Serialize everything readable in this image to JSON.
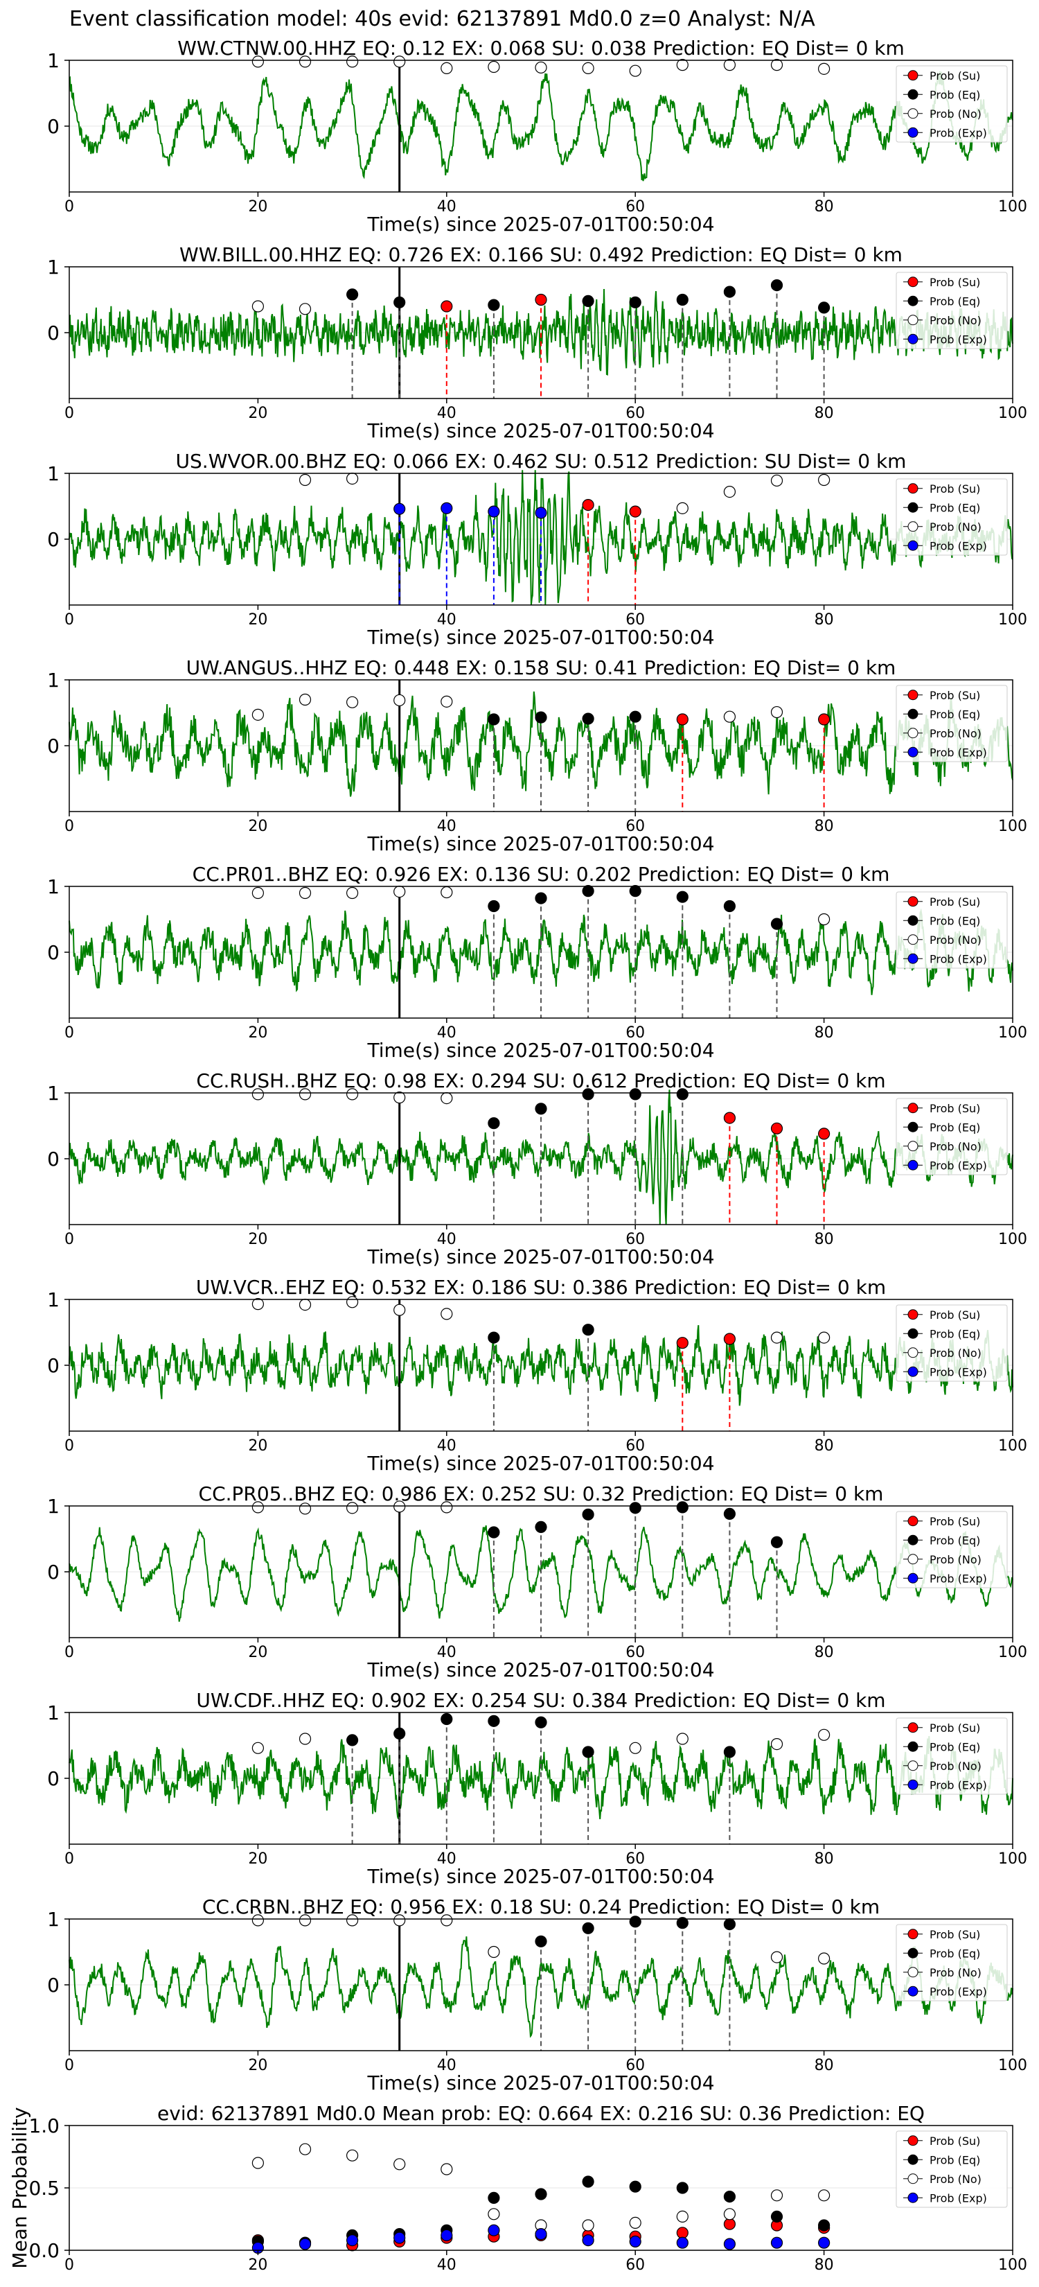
{
  "figure_title": "Event classification model: 40s evid: 62137891 Md0.0 z=0 Analyst: N/A",
  "legend_labels": [
    "Prob (Su)",
    "Prob (Eq)",
    "Prob (No)",
    "Prob (Exp)"
  ],
  "colors": {
    "waveform": "#008000",
    "su": "#ff0000",
    "eq": "#000000",
    "no": "#ffffff",
    "exp": "#0000ff",
    "pick": "#000000"
  },
  "chart_data": [
    {
      "type": "line",
      "title": "WW.CTNW.00.HHZ   EQ: 0.12  EX: 0.068  SU: 0.038   Prediction: EQ    Dist= 0 km",
      "xlabel": "Time(s) since 2025-07-01T00:50:04",
      "ylabel": "",
      "xlim": [
        0,
        100
      ],
      "ylim": [
        -1,
        1
      ],
      "xticks": [
        0,
        20,
        40,
        60,
        80,
        100
      ],
      "yticks": [
        0,
        1
      ],
      "pick_time": 35,
      "waveform": {
        "seed": 11,
        "amplitude": 0.65,
        "noise": 0.12,
        "period": 4.2
      },
      "points": [
        {
          "t": 20,
          "cls": "no",
          "p": 0.98
        },
        {
          "t": 25,
          "cls": "no",
          "p": 0.98
        },
        {
          "t": 30,
          "cls": "no",
          "p": 0.98
        },
        {
          "t": 35,
          "cls": "no",
          "p": 0.98
        },
        {
          "t": 40,
          "cls": "no",
          "p": 0.88
        },
        {
          "t": 45,
          "cls": "no",
          "p": 0.9
        },
        {
          "t": 50,
          "cls": "no",
          "p": 0.89
        },
        {
          "t": 55,
          "cls": "no",
          "p": 0.88
        },
        {
          "t": 60,
          "cls": "no",
          "p": 0.84
        },
        {
          "t": 65,
          "cls": "no",
          "p": 0.93
        },
        {
          "t": 70,
          "cls": "no",
          "p": 0.93
        },
        {
          "t": 75,
          "cls": "no",
          "p": 0.93
        },
        {
          "t": 80,
          "cls": "no",
          "p": 0.87
        }
      ]
    },
    {
      "type": "line",
      "title": "WW.BILL.00.HHZ   EQ: 0.726  EX: 0.166  SU: 0.492   Prediction: EQ    Dist= 0 km",
      "xlabel": "Time(s) since 2025-07-01T00:50:04",
      "ylabel": "",
      "xlim": [
        0,
        100
      ],
      "ylim": [
        -1,
        1
      ],
      "xticks": [
        0,
        20,
        40,
        60,
        80,
        100
      ],
      "yticks": [
        0,
        1
      ],
      "pick_time": 35,
      "waveform": {
        "seed": 23,
        "amplitude": 0.2,
        "noise": 0.25,
        "period": 0.9,
        "burst": [
          45,
          70,
          0.35
        ]
      },
      "points": [
        {
          "t": 20,
          "cls": "no",
          "p": 0.4
        },
        {
          "t": 25,
          "cls": "no",
          "p": 0.36
        },
        {
          "t": 30,
          "cls": "eq",
          "p": 0.58
        },
        {
          "t": 35,
          "cls": "eq",
          "p": 0.46
        },
        {
          "t": 40,
          "cls": "su",
          "p": 0.4
        },
        {
          "t": 45,
          "cls": "eq",
          "p": 0.42
        },
        {
          "t": 50,
          "cls": "su",
          "p": 0.5
        },
        {
          "t": 55,
          "cls": "eq",
          "p": 0.48
        },
        {
          "t": 60,
          "cls": "eq",
          "p": 0.46
        },
        {
          "t": 65,
          "cls": "eq",
          "p": 0.5
        },
        {
          "t": 70,
          "cls": "eq",
          "p": 0.62
        },
        {
          "t": 75,
          "cls": "eq",
          "p": 0.72
        },
        {
          "t": 80,
          "cls": "eq",
          "p": 0.38
        }
      ]
    },
    {
      "type": "line",
      "title": "US.WVOR.00.BHZ   EQ: 0.066  EX: 0.462  SU: 0.512   Prediction: SU    Dist= 0 km",
      "xlabel": "Time(s) since 2025-07-01T00:50:04",
      "ylabel": "",
      "xlim": [
        0,
        100
      ],
      "ylim": [
        -1,
        1
      ],
      "xticks": [
        0,
        20,
        40,
        60,
        80,
        100
      ],
      "yticks": [
        0,
        1
      ],
      "pick_time": 35,
      "waveform": {
        "seed": 37,
        "amplitude": 0.35,
        "noise": 0.2,
        "period": 1.6,
        "burst": [
          42,
          56,
          0.95
        ]
      },
      "points": [
        {
          "t": 25,
          "cls": "no",
          "p": 0.9
        },
        {
          "t": 30,
          "cls": "no",
          "p": 0.92
        },
        {
          "t": 35,
          "cls": "exp",
          "p": 0.46
        },
        {
          "t": 40,
          "cls": "exp",
          "p": 0.47
        },
        {
          "t": 45,
          "cls": "exp",
          "p": 0.42
        },
        {
          "t": 50,
          "cls": "exp",
          "p": 0.4
        },
        {
          "t": 55,
          "cls": "su",
          "p": 0.52
        },
        {
          "t": 60,
          "cls": "su",
          "p": 0.42
        },
        {
          "t": 65,
          "cls": "no",
          "p": 0.47
        },
        {
          "t": 70,
          "cls": "no",
          "p": 0.72
        },
        {
          "t": 75,
          "cls": "no",
          "p": 0.89
        },
        {
          "t": 80,
          "cls": "no",
          "p": 0.9
        }
      ]
    },
    {
      "type": "line",
      "title": "UW.ANGUS..HHZ   EQ: 0.448  EX: 0.158  SU: 0.41   Prediction: EQ    Dist= 0 km",
      "xlabel": "Time(s) since 2025-07-01T00:50:04",
      "ylabel": "",
      "xlim": [
        0,
        100
      ],
      "ylim": [
        -1,
        1
      ],
      "xticks": [
        0,
        20,
        40,
        60,
        80,
        100
      ],
      "yticks": [
        0,
        1
      ],
      "pick_time": 35,
      "waveform": {
        "seed": 41,
        "amplitude": 0.55,
        "noise": 0.25,
        "period": 2.6
      },
      "points": [
        {
          "t": 20,
          "cls": "no",
          "p": 0.47
        },
        {
          "t": 25,
          "cls": "no",
          "p": 0.7
        },
        {
          "t": 30,
          "cls": "no",
          "p": 0.66
        },
        {
          "t": 35,
          "cls": "no",
          "p": 0.69
        },
        {
          "t": 40,
          "cls": "no",
          "p": 0.67
        },
        {
          "t": 45,
          "cls": "eq",
          "p": 0.4
        },
        {
          "t": 50,
          "cls": "eq",
          "p": 0.43
        },
        {
          "t": 55,
          "cls": "eq",
          "p": 0.41
        },
        {
          "t": 60,
          "cls": "eq",
          "p": 0.44
        },
        {
          "t": 65,
          "cls": "su",
          "p": 0.4
        },
        {
          "t": 70,
          "cls": "no",
          "p": 0.44
        },
        {
          "t": 75,
          "cls": "no",
          "p": 0.51
        },
        {
          "t": 80,
          "cls": "su",
          "p": 0.4
        }
      ]
    },
    {
      "type": "line",
      "title": "CC.PR01..BHZ   EQ: 0.926  EX: 0.136  SU: 0.202   Prediction: EQ    Dist= 0 km",
      "xlabel": "Time(s) since 2025-07-01T00:50:04",
      "ylabel": "",
      "xlim": [
        0,
        100
      ],
      "ylim": [
        -1,
        1
      ],
      "xticks": [
        0,
        20,
        40,
        60,
        80,
        100
      ],
      "yticks": [
        0,
        1
      ],
      "pick_time": 35,
      "waveform": {
        "seed": 53,
        "amplitude": 0.45,
        "noise": 0.2,
        "period": 2.1
      },
      "points": [
        {
          "t": 20,
          "cls": "no",
          "p": 0.9
        },
        {
          "t": 25,
          "cls": "no",
          "p": 0.9
        },
        {
          "t": 30,
          "cls": "no",
          "p": 0.9
        },
        {
          "t": 35,
          "cls": "no",
          "p": 0.92
        },
        {
          "t": 40,
          "cls": "no",
          "p": 0.91
        },
        {
          "t": 45,
          "cls": "eq",
          "p": 0.7
        },
        {
          "t": 50,
          "cls": "eq",
          "p": 0.82
        },
        {
          "t": 55,
          "cls": "eq",
          "p": 0.93
        },
        {
          "t": 60,
          "cls": "eq",
          "p": 0.93
        },
        {
          "t": 65,
          "cls": "eq",
          "p": 0.84
        },
        {
          "t": 70,
          "cls": "eq",
          "p": 0.7
        },
        {
          "t": 75,
          "cls": "eq",
          "p": 0.43
        },
        {
          "t": 80,
          "cls": "no",
          "p": 0.5
        }
      ]
    },
    {
      "type": "line",
      "title": "CC.RUSH..BHZ   EQ: 0.98  EX: 0.294  SU: 0.612   Prediction: EQ    Dist= 0 km",
      "xlabel": "Time(s) since 2025-07-01T00:50:04",
      "ylabel": "",
      "xlim": [
        0,
        100
      ],
      "ylim": [
        -1,
        1
      ],
      "xticks": [
        0,
        20,
        40,
        60,
        80,
        100
      ],
      "yticks": [
        0,
        1
      ],
      "pick_time": 35,
      "waveform": {
        "seed": 67,
        "amplitude": 0.3,
        "noise": 0.15,
        "period": 2.2,
        "burst": [
          60,
          66,
          0.9
        ]
      },
      "points": [
        {
          "t": 20,
          "cls": "no",
          "p": 0.98
        },
        {
          "t": 25,
          "cls": "no",
          "p": 0.98
        },
        {
          "t": 30,
          "cls": "no",
          "p": 0.98
        },
        {
          "t": 35,
          "cls": "no",
          "p": 0.93
        },
        {
          "t": 40,
          "cls": "no",
          "p": 0.92
        },
        {
          "t": 45,
          "cls": "eq",
          "p": 0.54
        },
        {
          "t": 50,
          "cls": "eq",
          "p": 0.76
        },
        {
          "t": 55,
          "cls": "eq",
          "p": 0.98
        },
        {
          "t": 60,
          "cls": "eq",
          "p": 0.98
        },
        {
          "t": 65,
          "cls": "eq",
          "p": 0.98
        },
        {
          "t": 70,
          "cls": "su",
          "p": 0.62
        },
        {
          "t": 75,
          "cls": "su",
          "p": 0.46
        },
        {
          "t": 80,
          "cls": "su",
          "p": 0.38
        }
      ]
    },
    {
      "type": "line",
      "title": "UW.VCR..EHZ   EQ: 0.532  EX: 0.186  SU: 0.386   Prediction: EQ    Dist= 0 km",
      "xlabel": "Time(s) since 2025-07-01T00:50:04",
      "ylabel": "",
      "xlim": [
        0,
        100
      ],
      "ylim": [
        -1,
        1
      ],
      "xticks": [
        0,
        20,
        40,
        60,
        80,
        100
      ],
      "yticks": [
        0,
        1
      ],
      "pick_time": 35,
      "waveform": {
        "seed": 79,
        "amplitude": 0.35,
        "noise": 0.2,
        "period": 1.8
      },
      "points": [
        {
          "t": 20,
          "cls": "no",
          "p": 0.93
        },
        {
          "t": 25,
          "cls": "no",
          "p": 0.92
        },
        {
          "t": 30,
          "cls": "no",
          "p": 0.96
        },
        {
          "t": 35,
          "cls": "no",
          "p": 0.84
        },
        {
          "t": 40,
          "cls": "no",
          "p": 0.78
        },
        {
          "t": 45,
          "cls": "eq",
          "p": 0.42
        },
        {
          "t": 55,
          "cls": "eq",
          "p": 0.54
        },
        {
          "t": 65,
          "cls": "su",
          "p": 0.34
        },
        {
          "t": 70,
          "cls": "su",
          "p": 0.4
        },
        {
          "t": 75,
          "cls": "no",
          "p": 0.42
        },
        {
          "t": 80,
          "cls": "no",
          "p": 0.42
        }
      ]
    },
    {
      "type": "line",
      "title": "CC.PR05..BHZ   EQ: 0.986  EX: 0.252  SU: 0.32   Prediction: EQ    Dist= 0 km",
      "xlabel": "Time(s) since 2025-07-01T00:50:04",
      "ylabel": "",
      "xlim": [
        0,
        100
      ],
      "ylim": [
        -1,
        1
      ],
      "xticks": [
        0,
        20,
        40,
        60,
        80,
        100
      ],
      "yticks": [
        0,
        1
      ],
      "pick_time": 35,
      "waveform": {
        "seed": 83,
        "amplitude": 0.6,
        "noise": 0.08,
        "period": 3.4
      },
      "points": [
        {
          "t": 20,
          "cls": "no",
          "p": 0.98
        },
        {
          "t": 25,
          "cls": "no",
          "p": 0.96
        },
        {
          "t": 30,
          "cls": "no",
          "p": 0.97
        },
        {
          "t": 35,
          "cls": "no",
          "p": 0.99
        },
        {
          "t": 40,
          "cls": "no",
          "p": 0.98
        },
        {
          "t": 45,
          "cls": "eq",
          "p": 0.6
        },
        {
          "t": 50,
          "cls": "eq",
          "p": 0.68
        },
        {
          "t": 55,
          "cls": "eq",
          "p": 0.87
        },
        {
          "t": 60,
          "cls": "eq",
          "p": 0.97
        },
        {
          "t": 65,
          "cls": "eq",
          "p": 0.98
        },
        {
          "t": 70,
          "cls": "eq",
          "p": 0.88
        },
        {
          "t": 75,
          "cls": "eq",
          "p": 0.45
        }
      ]
    },
    {
      "type": "line",
      "title": "UW.CDF..HHZ   EQ: 0.902  EX: 0.254  SU: 0.384   Prediction: EQ    Dist= 0 km",
      "xlabel": "Time(s) since 2025-07-01T00:50:04",
      "ylabel": "",
      "xlim": [
        0,
        100
      ],
      "ylim": [
        -1,
        1
      ],
      "xticks": [
        0,
        20,
        40,
        60,
        80,
        100
      ],
      "yticks": [
        0,
        1
      ],
      "pick_time": 35,
      "waveform": {
        "seed": 97,
        "amplitude": 0.45,
        "noise": 0.2,
        "period": 2.4
      },
      "points": [
        {
          "t": 20,
          "cls": "no",
          "p": 0.46
        },
        {
          "t": 25,
          "cls": "no",
          "p": 0.6
        },
        {
          "t": 30,
          "cls": "eq",
          "p": 0.58
        },
        {
          "t": 35,
          "cls": "eq",
          "p": 0.68
        },
        {
          "t": 40,
          "cls": "eq",
          "p": 0.9
        },
        {
          "t": 45,
          "cls": "eq",
          "p": 0.87
        },
        {
          "t": 50,
          "cls": "eq",
          "p": 0.85
        },
        {
          "t": 55,
          "cls": "eq",
          "p": 0.4
        },
        {
          "t": 60,
          "cls": "no",
          "p": 0.46
        },
        {
          "t": 65,
          "cls": "no",
          "p": 0.6
        },
        {
          "t": 70,
          "cls": "eq",
          "p": 0.4
        },
        {
          "t": 75,
          "cls": "no",
          "p": 0.52
        },
        {
          "t": 80,
          "cls": "no",
          "p": 0.66
        }
      ]
    },
    {
      "type": "line",
      "title": "CC.CRBN..BHZ   EQ: 0.956  EX: 0.18  SU: 0.24   Prediction: EQ    Dist= 0 km",
      "xlabel": "Time(s) since 2025-07-01T00:50:04",
      "ylabel": "",
      "xlim": [
        0,
        100
      ],
      "ylim": [
        -1,
        1
      ],
      "xticks": [
        0,
        20,
        40,
        60,
        80,
        100
      ],
      "yticks": [
        0,
        1
      ],
      "pick_time": 35,
      "waveform": {
        "seed": 101,
        "amplitude": 0.5,
        "noise": 0.12,
        "period": 2.8
      },
      "points": [
        {
          "t": 20,
          "cls": "no",
          "p": 0.98
        },
        {
          "t": 25,
          "cls": "no",
          "p": 0.98
        },
        {
          "t": 30,
          "cls": "no",
          "p": 0.98
        },
        {
          "t": 35,
          "cls": "no",
          "p": 0.98
        },
        {
          "t": 40,
          "cls": "no",
          "p": 0.98
        },
        {
          "t": 45,
          "cls": "no",
          "p": 0.5
        },
        {
          "t": 50,
          "cls": "eq",
          "p": 0.66
        },
        {
          "t": 55,
          "cls": "eq",
          "p": 0.86
        },
        {
          "t": 60,
          "cls": "eq",
          "p": 0.96
        },
        {
          "t": 65,
          "cls": "eq",
          "p": 0.94
        },
        {
          "t": 70,
          "cls": "eq",
          "p": 0.92
        },
        {
          "t": 75,
          "cls": "no",
          "p": 0.42
        },
        {
          "t": 80,
          "cls": "no",
          "p": 0.4
        }
      ]
    },
    {
      "type": "scatter",
      "title": "evid: 62137891   Md0.0    Mean prob:   EQ: 0.664  EX: 0.216  SU: 0.36   Prediction: EQ",
      "xlabel": "",
      "ylabel": "Mean Probability",
      "xlim": [
        0,
        100
      ],
      "ylim": [
        0,
        1
      ],
      "xticks": [
        0,
        20,
        40,
        60,
        80,
        100
      ],
      "yticks": [
        0.0,
        0.5,
        1.0
      ],
      "ytick_labels": [
        "0.0",
        "0.5",
        "1.0"
      ],
      "series": [
        {
          "name": "Prob (Su)",
          "cls": "su",
          "x": [
            20,
            25,
            30,
            35,
            40,
            45,
            50,
            55,
            60,
            65,
            70,
            75,
            80
          ],
          "y": [
            0.08,
            0.06,
            0.04,
            0.07,
            0.1,
            0.11,
            0.12,
            0.12,
            0.11,
            0.14,
            0.21,
            0.2,
            0.18
          ]
        },
        {
          "name": "Prob (Eq)",
          "cls": "eq",
          "x": [
            20,
            25,
            30,
            35,
            40,
            45,
            50,
            55,
            60,
            65,
            70,
            75,
            80
          ],
          "y": [
            0.07,
            0.06,
            0.12,
            0.13,
            0.16,
            0.42,
            0.45,
            0.55,
            0.51,
            0.5,
            0.43,
            0.27,
            0.2
          ]
        },
        {
          "name": "Prob (No)",
          "cls": "no",
          "x": [
            20,
            25,
            30,
            35,
            40,
            45,
            50,
            55,
            60,
            65,
            70,
            75,
            80
          ],
          "y": [
            0.7,
            0.81,
            0.76,
            0.69,
            0.65,
            0.29,
            0.2,
            0.2,
            0.22,
            0.27,
            0.29,
            0.44,
            0.44
          ]
        },
        {
          "name": "Prob (Exp)",
          "cls": "exp",
          "x": [
            20,
            25,
            30,
            35,
            40,
            45,
            50,
            55,
            60,
            65,
            70,
            75,
            80
          ],
          "y": [
            0.02,
            0.05,
            0.08,
            0.1,
            0.12,
            0.16,
            0.13,
            0.08,
            0.07,
            0.06,
            0.05,
            0.06,
            0.06
          ]
        }
      ]
    }
  ]
}
